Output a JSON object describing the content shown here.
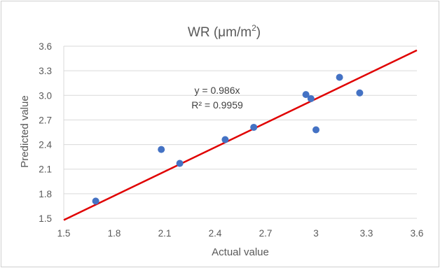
{
  "chart_data": {
    "type": "scatter",
    "title_main": "WR (μm/m",
    "title_sup": "2",
    "title_end": ")",
    "xlabel": "Actual value",
    "ylabel": "Predicted value",
    "xlim": [
      1.5,
      3.6
    ],
    "ylim": [
      1.5,
      3.6
    ],
    "x_ticks": [
      "1.5",
      "1.8",
      "2.1",
      "2.4",
      "2.7",
      "3",
      "3.3",
      "3.6"
    ],
    "x_tick_values": [
      1.5,
      1.8,
      2.1,
      2.4,
      2.7,
      3.0,
      3.3,
      3.6
    ],
    "y_ticks": [
      "1.5",
      "1.8",
      "2.1",
      "2.4",
      "2.7",
      "3.0",
      "3.3",
      "3.6"
    ],
    "y_tick_values": [
      1.5,
      1.8,
      2.1,
      2.4,
      2.7,
      3.0,
      3.3,
      3.6
    ],
    "grid": "horizontal",
    "points": [
      {
        "x": 1.69,
        "y": 1.71
      },
      {
        "x": 2.08,
        "y": 2.34
      },
      {
        "x": 2.19,
        "y": 2.17
      },
      {
        "x": 2.46,
        "y": 2.46
      },
      {
        "x": 2.63,
        "y": 2.61
      },
      {
        "x": 2.94,
        "y": 3.01
      },
      {
        "x": 2.97,
        "y": 2.96
      },
      {
        "x": 3.0,
        "y": 2.58
      },
      {
        "x": 3.14,
        "y": 3.22
      },
      {
        "x": 3.26,
        "y": 3.03
      }
    ],
    "trendline": {
      "slope": 0.986,
      "x_range": [
        1.5,
        3.6
      ]
    },
    "annotations": [
      "y = 0.986x",
      "R² = 0.9959"
    ],
    "colors": {
      "points": "#4472c4",
      "trendline": "#e00000",
      "grid": "#d9d9d9"
    }
  }
}
